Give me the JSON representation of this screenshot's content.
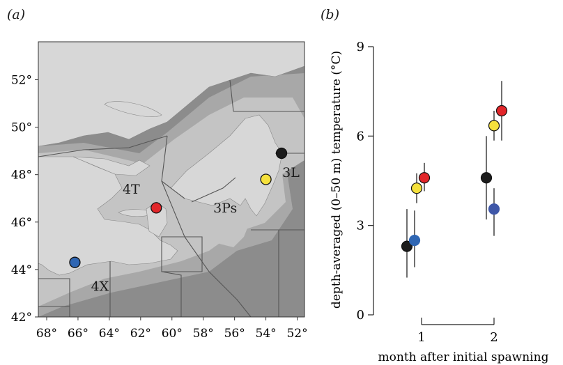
{
  "panel_a_label": "(a)",
  "panel_b_label": "(b)",
  "colors": {
    "land": "#d7d7d7",
    "deep_water": "#8c8c8c",
    "mid_water": "#a8a8a8",
    "shelf": "#c4c4c4",
    "black": "#1c1c1c",
    "yellow": "#f5e13c",
    "red": "#e2262a",
    "blue": "#2f66b3",
    "blue_muted": "#3f57a8"
  },
  "map": {
    "lat_labels": [
      "52°",
      "50°",
      "48°",
      "46°",
      "44°",
      "42°"
    ],
    "lon_labels": [
      "68°",
      "66°",
      "64°",
      "62°",
      "60°",
      "58°",
      "56°",
      "54°",
      "52°"
    ],
    "regions": [
      {
        "name": "4T",
        "color": "black"
      },
      {
        "name": "3L",
        "color": "black"
      },
      {
        "name": "3Ps",
        "color": "black"
      },
      {
        "name": "4X",
        "color": "black"
      }
    ],
    "sites": [
      {
        "lon": -66.2,
        "lat": 44.3,
        "color": "blue"
      },
      {
        "lon": -61.0,
        "lat": 46.6,
        "color": "red"
      },
      {
        "lon": -54.0,
        "lat": 47.8,
        "color": "yellow"
      },
      {
        "lon": -53.0,
        "lat": 48.9,
        "color": "black"
      }
    ]
  },
  "chart_data": {
    "type": "scatter",
    "ylabel": "depth-averaged (0–50 m) temperature (°C)",
    "xlabel": "month after initial spawning",
    "x_ticks": [
      "1",
      "2"
    ],
    "y_ticks": [
      "0",
      "3",
      "6",
      "9"
    ],
    "ylim": [
      0,
      9
    ],
    "xlim": [
      0.45,
      2.55
    ],
    "grid": false,
    "series": [
      {
        "color": "black",
        "points": [
          {
            "x": 1,
            "y": 2.3,
            "low": 1.25,
            "high": 3.55
          },
          {
            "x": 2,
            "y": 4.6,
            "low": 3.2,
            "high": 6.0
          }
        ]
      },
      {
        "color": "blue",
        "points": [
          {
            "x": 1,
            "y": 2.5,
            "low": 1.6,
            "high": 3.5
          },
          {
            "x": 2,
            "y": 3.55,
            "low": 2.65,
            "high": 4.25
          }
        ]
      },
      {
        "color": "yellow",
        "points": [
          {
            "x": 1,
            "y": 4.25,
            "low": 3.75,
            "high": 4.75
          },
          {
            "x": 2,
            "y": 6.35,
            "low": 5.85,
            "high": 6.85
          }
        ]
      },
      {
        "color": "red",
        "points": [
          {
            "x": 1,
            "y": 4.6,
            "low": 4.15,
            "high": 5.1
          },
          {
            "x": 2,
            "y": 6.85,
            "low": 5.85,
            "high": 7.85
          }
        ]
      }
    ]
  }
}
